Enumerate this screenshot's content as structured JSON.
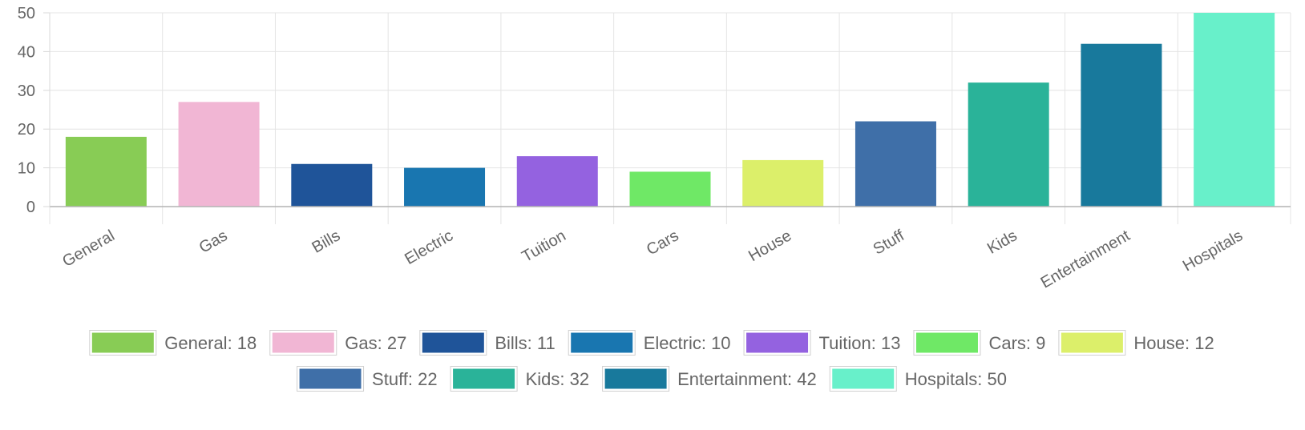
{
  "chart_data": {
    "type": "bar",
    "categories": [
      "General",
      "Gas",
      "Bills",
      "Electric",
      "Tuition",
      "Cars",
      "House",
      "Stuff",
      "Kids",
      "Entertainment",
      "Hospitals"
    ],
    "values": [
      18,
      27,
      11,
      10,
      13,
      9,
      12,
      22,
      32,
      42,
      50
    ],
    "colors": [
      "#88cc55",
      "#f1b6d4",
      "#1f5499",
      "#1976b0",
      "#9462e0",
      "#6fe866",
      "#dcef6a",
      "#3f6fa8",
      "#2ab399",
      "#18799c",
      "#68f0ca"
    ],
    "ylim": [
      0,
      50
    ],
    "yticks": [
      0,
      10,
      20,
      30,
      40,
      50
    ],
    "grid": true,
    "legend": {
      "position": "bottom",
      "items": [
        "General: 18",
        "Gas: 27",
        "Bills: 11",
        "Electric: 10",
        "Tuition: 13",
        "Cars: 9",
        "House: 12",
        "Stuff: 22",
        "Kids: 32",
        "Entertainment: 42",
        "Hospitals: 50"
      ]
    }
  }
}
